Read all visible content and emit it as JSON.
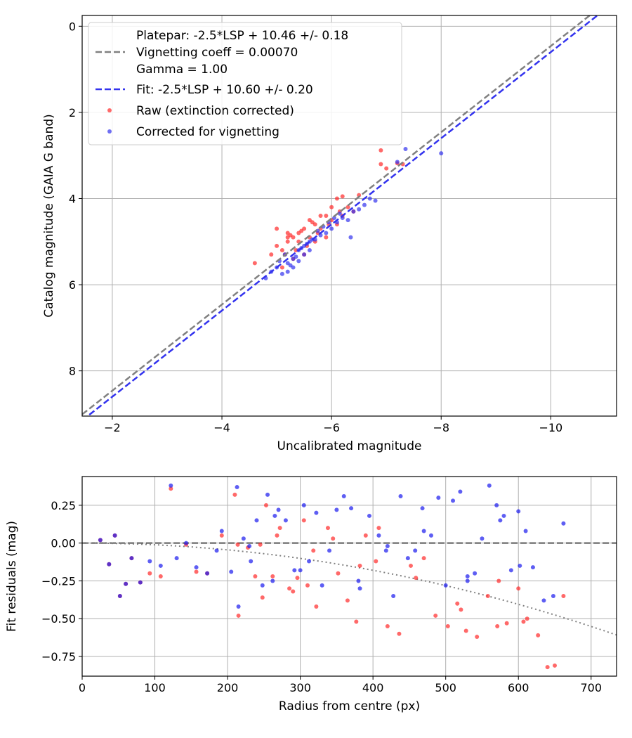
{
  "chart_data": [
    {
      "type": "scatter",
      "xlabel": "Uncalibrated magnitude",
      "ylabel": "Catalog magnitude (GAIA G band)",
      "xlim": [
        -1.45,
        -11.2
      ],
      "ylim": [
        -0.25,
        9.05
      ],
      "xticks": [
        -2,
        -4,
        -6,
        -8,
        -10
      ],
      "xtick_labels": [
        "−2",
        "−4",
        "−6",
        "−8",
        "−10"
      ],
      "yticks": [
        0,
        2,
        4,
        6,
        8
      ],
      "ytick_labels": [
        "0",
        "2",
        "4",
        "6",
        "8"
      ],
      "grid": true,
      "legend_position": "top-left",
      "legend": {
        "platepar": [
          "Platepar: -2.5*LSP + 10.46 +/- 0.18",
          "Vignetting coeff = 0.00070",
          "Gamma = 1.00"
        ],
        "fit": "Fit: -2.5*LSP + 10.60 +/- 0.20",
        "raw": "Raw (extinction corrected)",
        "corrected": "Corrected for vignetting"
      },
      "lines": [
        {
          "name": "Platepar",
          "slope": 1.0,
          "intercept": 10.46,
          "color": "#808080",
          "style": "dashed"
        },
        {
          "name": "Fit",
          "slope": 1.0,
          "intercept": 10.6,
          "color": "#3333ee",
          "style": "dashed"
        }
      ],
      "series": [
        {
          "name": "Raw (extinction corrected)",
          "color": "#ff2a2a",
          "x": [
            -4.6,
            -4.9,
            -5.0,
            -5.1,
            -5.2,
            -5.2,
            -5.3,
            -5.4,
            -5.5,
            -5.6,
            -5.7,
            -5.8,
            -5.9,
            -6.0,
            -6.1,
            -6.2,
            -6.3,
            -6.4,
            -5.1,
            -5.3,
            -5.5,
            -5.7,
            -5.9,
            -6.1,
            -5.0,
            -5.2,
            -5.4,
            -5.6,
            -5.8,
            -6.0,
            -6.2,
            -5.15,
            -5.35,
            -5.55,
            -5.75,
            -5.95,
            -6.15,
            -6.9,
            -6.9,
            -7.0,
            -7.2,
            -7.3,
            -5.25,
            -5.45,
            -5.65,
            -6.5
          ],
          "y": [
            5.5,
            5.3,
            5.1,
            5.2,
            5.0,
            4.8,
            4.9,
            4.8,
            4.7,
            4.5,
            4.6,
            4.4,
            4.4,
            4.2,
            4.0,
            3.95,
            4.2,
            4.3,
            5.6,
            5.4,
            5.3,
            5.0,
            4.9,
            4.6,
            4.7,
            4.9,
            5.0,
            4.9,
            4.7,
            4.5,
            4.4,
            5.3,
            5.2,
            5.1,
            4.8,
            4.6,
            4.3,
            2.88,
            3.2,
            3.3,
            3.18,
            3.2,
            4.85,
            4.75,
            4.55,
            3.92
          ]
        },
        {
          "name": "Corrected for vignetting",
          "color": "#3333ee",
          "x": [
            -4.8,
            -4.9,
            -5.0,
            -5.1,
            -5.2,
            -5.2,
            -5.3,
            -5.3,
            -5.4,
            -5.4,
            -5.5,
            -5.5,
            -5.6,
            -5.6,
            -5.7,
            -5.8,
            -5.9,
            -6.0,
            -6.1,
            -6.2,
            -6.3,
            -6.4,
            -6.5,
            -6.6,
            -6.7,
            -6.8,
            -5.25,
            -5.35,
            -5.45,
            -5.55,
            -5.65,
            -5.75,
            -5.85,
            -5.95,
            -6.05,
            -6.15,
            -5.05,
            -5.15,
            -7.2,
            -7.35,
            -8.0,
            -6.35
          ],
          "y": [
            5.85,
            5.7,
            5.6,
            5.75,
            5.7,
            5.5,
            5.6,
            5.4,
            5.45,
            5.2,
            5.3,
            5.1,
            5.0,
            5.2,
            4.95,
            4.85,
            4.8,
            4.7,
            4.55,
            4.45,
            4.5,
            4.3,
            4.25,
            4.15,
            4.0,
            4.05,
            5.55,
            5.35,
            5.15,
            5.05,
            4.95,
            4.75,
            4.65,
            4.55,
            4.45,
            4.35,
            5.45,
            5.3,
            3.15,
            2.85,
            2.95,
            4.9
          ]
        }
      ]
    },
    {
      "type": "scatter",
      "xlabel": "Radius from centre (px)",
      "ylabel": "Fit residuals (mag)",
      "xlim": [
        0,
        735
      ],
      "ylim": [
        -0.88,
        0.44
      ],
      "xticks": [
        0,
        100,
        200,
        300,
        400,
        500,
        600,
        700
      ],
      "xtick_labels": [
        "0",
        "100",
        "200",
        "300",
        "400",
        "500",
        "600",
        "700"
      ],
      "yticks": [
        -0.75,
        -0.5,
        -0.25,
        0.0,
        0.25
      ],
      "ytick_labels": [
        "−0.75",
        "−0.50",
        "−0.25",
        "0.00",
        "0.25"
      ],
      "grid": true,
      "lines": [
        {
          "name": "zero",
          "type": "hline",
          "y": 0,
          "color": "#555555",
          "style": "dashed"
        },
        {
          "name": "vignetting",
          "type": "poly2",
          "a": -1.125e-06,
          "color": "#808080",
          "style": "dotted"
        }
      ],
      "series": [
        {
          "name": "Raw (extinction corrected)",
          "color": "#ff2a2a",
          "x": [
            25,
            37,
            45,
            52,
            60,
            68,
            80,
            93,
            108,
            122,
            143,
            157,
            172,
            192,
            210,
            215,
            228,
            238,
            248,
            253,
            262,
            272,
            285,
            296,
            305,
            318,
            322,
            338,
            352,
            365,
            377,
            390,
            404,
            420,
            436,
            452,
            470,
            486,
            503,
            516,
            528,
            543,
            558,
            571,
            584,
            600,
            612,
            627,
            640,
            650,
            662,
            245,
            268,
            310,
            345,
            382,
            408,
            459,
            521,
            573,
            607,
            214,
            290
          ],
          "y": [
            0.02,
            -0.14,
            0.05,
            -0.35,
            -0.27,
            -0.1,
            -0.26,
            -0.2,
            -0.22,
            0.36,
            -0.01,
            -0.19,
            -0.2,
            0.05,
            0.32,
            -0.48,
            -0.03,
            -0.22,
            -0.36,
            0.25,
            -0.22,
            0.1,
            -0.3,
            -0.23,
            0.15,
            -0.05,
            -0.42,
            0.1,
            -0.2,
            -0.38,
            -0.52,
            0.05,
            -0.12,
            -0.55,
            -0.6,
            -0.15,
            -0.1,
            -0.48,
            -0.55,
            -0.4,
            -0.58,
            -0.62,
            -0.35,
            -0.55,
            -0.53,
            -0.3,
            -0.5,
            -0.61,
            -0.82,
            -0.81,
            -0.35,
            -0.01,
            0.05,
            -0.28,
            0.03,
            -0.15,
            0.1,
            -0.23,
            -0.44,
            -0.25,
            -0.52,
            -0.01,
            -0.32
          ]
        },
        {
          "name": "Corrected for vignetting",
          "color": "#1a1aee",
          "x": [
            25,
            37,
            45,
            52,
            60,
            68,
            80,
            93,
            108,
            122,
            130,
            143,
            157,
            172,
            185,
            192,
            205,
            213,
            215,
            222,
            232,
            240,
            248,
            255,
            262,
            270,
            280,
            292,
            305,
            312,
            322,
            330,
            340,
            350,
            360,
            370,
            382,
            395,
            408,
            418,
            428,
            438,
            448,
            458,
            468,
            480,
            490,
            500,
            510,
            520,
            530,
            540,
            550,
            560,
            570,
            580,
            590,
            600,
            610,
            620,
            635,
            648,
            662,
            230,
            265,
            300,
            380,
            420,
            470,
            530,
            575,
            602
          ],
          "y": [
            0.02,
            -0.14,
            0.05,
            -0.35,
            -0.27,
            -0.1,
            -0.26,
            -0.12,
            -0.15,
            0.38,
            -0.1,
            0.0,
            -0.16,
            -0.2,
            -0.05,
            0.08,
            -0.19,
            0.37,
            -0.42,
            0.03,
            -0.12,
            0.15,
            -0.28,
            0.32,
            -0.25,
            0.22,
            0.15,
            -0.18,
            0.25,
            -0.12,
            0.2,
            -0.28,
            -0.05,
            0.22,
            0.31,
            0.23,
            -0.3,
            0.18,
            0.05,
            -0.05,
            -0.35,
            0.31,
            -0.1,
            -0.05,
            0.23,
            0.05,
            0.3,
            -0.28,
            0.28,
            0.34,
            -0.22,
            -0.2,
            0.03,
            0.38,
            0.25,
            0.18,
            -0.18,
            0.21,
            0.08,
            -0.16,
            -0.38,
            -0.35,
            0.13,
            -0.02,
            0.18,
            -0.18,
            -0.25,
            -0.02,
            0.08,
            -0.25,
            0.15,
            -0.15
          ]
        }
      ]
    }
  ]
}
